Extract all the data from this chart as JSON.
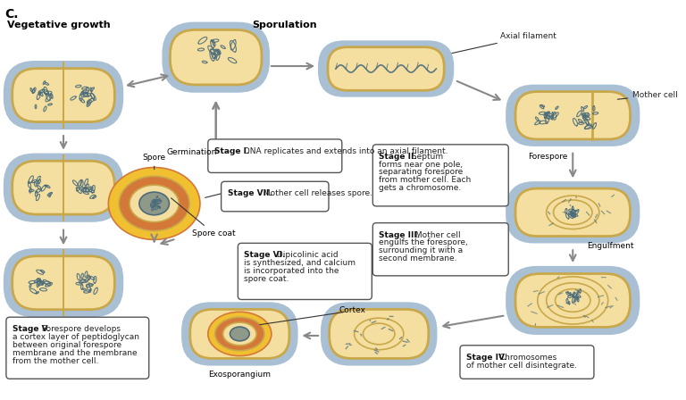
{
  "title_letter": "C.",
  "background_color": "#ffffff",
  "cell_outer": "#a8bfd4",
  "cell_inner_bg": "#f5dfa0",
  "cell_wall": "#c8a84b",
  "dna_color": "#4a6b7a",
  "spore_yellow": "#f0c030",
  "spore_orange": "#d4783a",
  "text_box_bg": "#ffffff",
  "text_box_border": "#555555",
  "arrow_color": "#888888",
  "veg_title": "Vegetative growth",
  "spor_title": "Sporulation",
  "stage1_bold": "Stage I.",
  "stage1_text": " DNA replicates and\nextends into an axial filament.",
  "stage2_bold": "Stage II.",
  "stage2_text": " Septum\nforms near one pole,\nseparating forespore\nfrom mother cell. Each\ngets a chromosome.",
  "stage3_bold": "Stage III.",
  "stage3_text": " Mother cell\nengulfs the forespore,\nsurrounding it with a\nsecond membrane.",
  "stage4_bold": "Stage IV.",
  "stage4_text": " Chromosomes\nof mother cell disintegrate.",
  "stage5_bold": "Stage V.",
  "stage5_text": " Forespore develops\na cortex layer of peptidoglycan\nbetween original forespore\nmembrane and the membrane\nfrom the mother cell.",
  "stage6_bold": "Stage VI.",
  "stage6_text": " Dipicolinic acid\nis synthesized, and calcium\nis incorporated into the\nspore coat.",
  "stage7_bold": "Stage VII.",
  "stage7_text": " Mother\ncell releases spore.",
  "germination_label": "Germination",
  "spore_label": "Spore",
  "spore_coat_label": "Spore coat",
  "axial_filament_label": "Axial filament",
  "mother_cell_label": "Mother cell",
  "forespore_label": "Forespore",
  "engulfment_label": "Engulfment",
  "cortex_label": "Cortex",
  "exosporangium_label": "Exosporangium"
}
